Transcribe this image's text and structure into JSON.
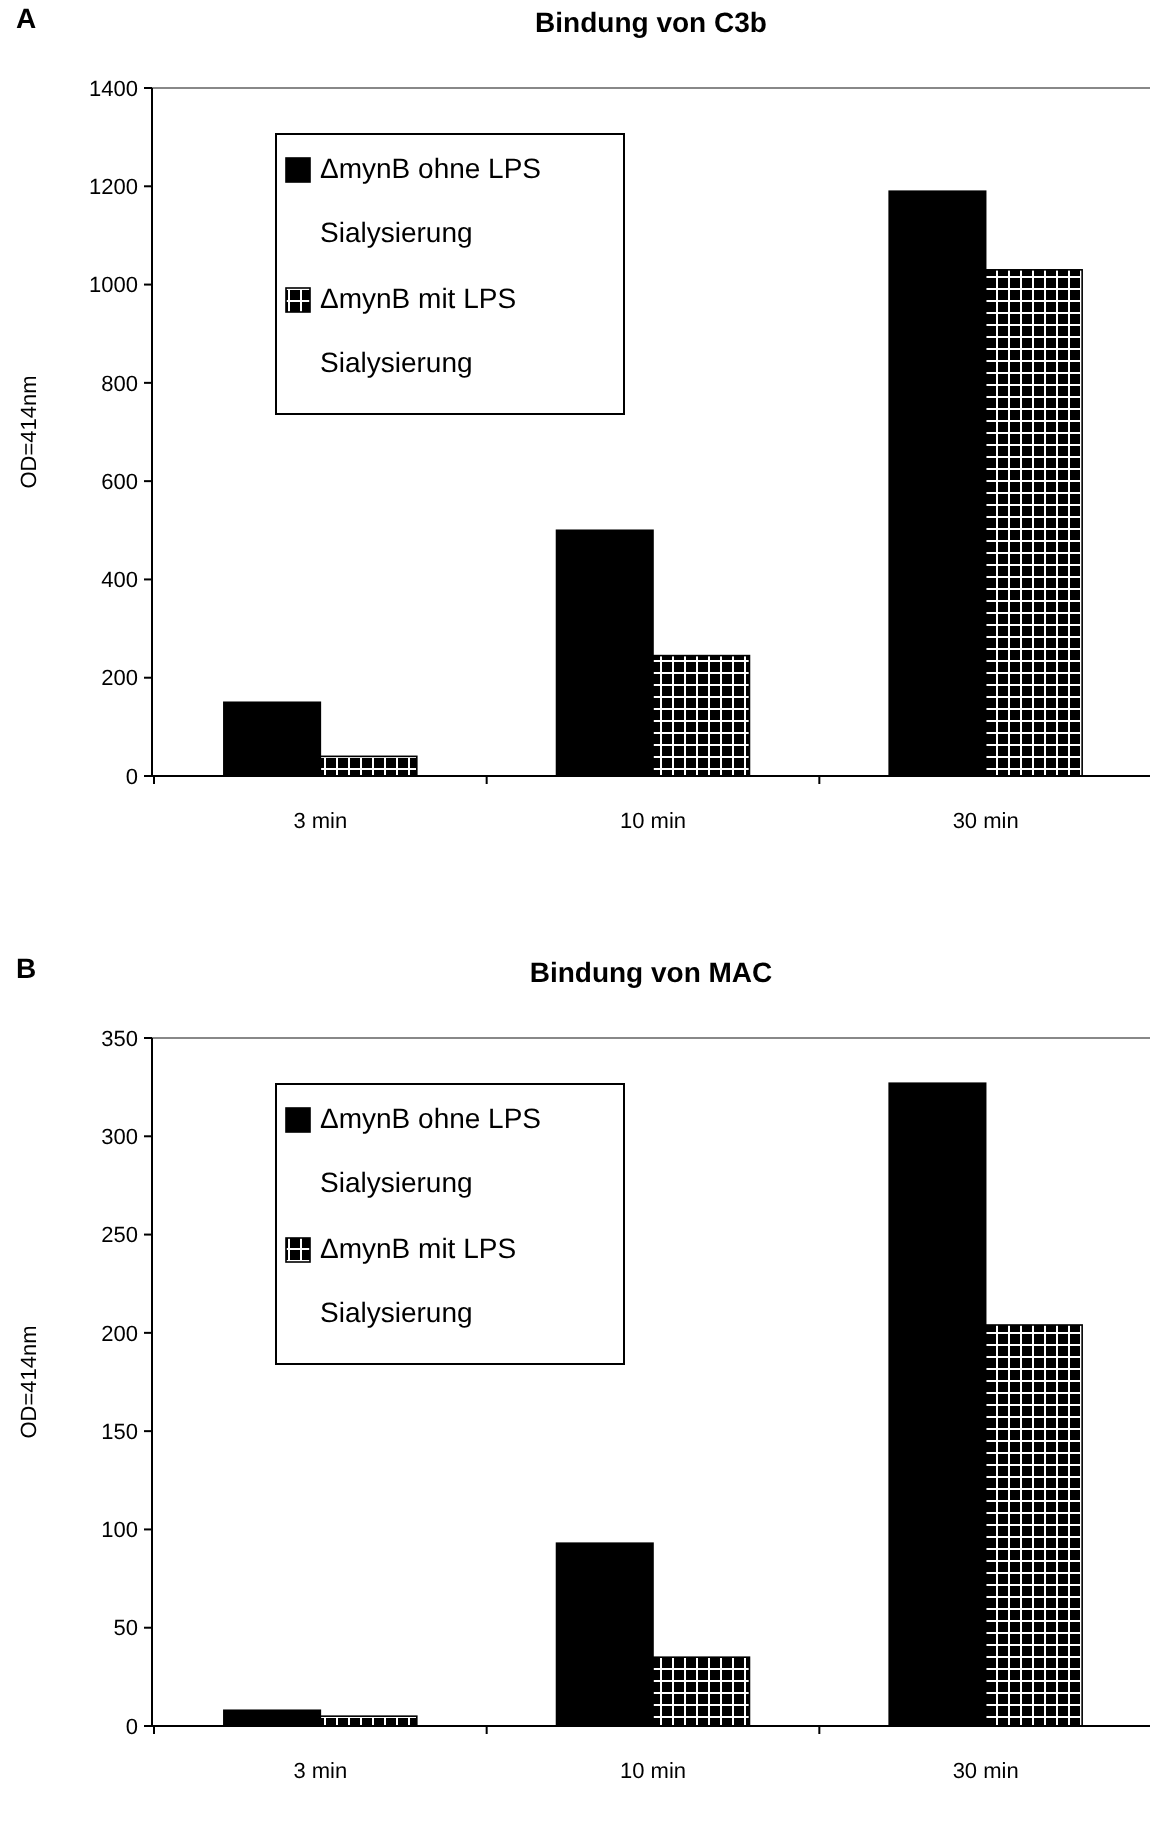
{
  "chart_data": [
    {
      "type": "bar",
      "title": "Bindung von C3b",
      "ylabel": "OD=414nm",
      "annotations": [
        "A"
      ],
      "categories": [
        "3 min",
        "10 min",
        "30 min"
      ],
      "series": [
        {
          "name": "ΔmynB ohne LPS Sialysierung",
          "color": "#000000",
          "values": [
            150,
            500,
            1190
          ]
        },
        {
          "name": "ΔmynB mit LPS Sialysierung",
          "color": "#000000",
          "values": [
            40,
            245,
            1030
          ]
        }
      ],
      "ylim": [
        0,
        1400
      ],
      "yticks": [
        0,
        200,
        400,
        600,
        800,
        1000,
        1200,
        1400
      ],
      "legend": "top left",
      "grid": false
    },
    {
      "type": "bar",
      "title": "Bindung von MAC",
      "ylabel": "OD=414nm",
      "annotations": [
        "B"
      ],
      "categories": [
        "3 min",
        "10 min",
        "30 min"
      ],
      "series": [
        {
          "name": "ΔmynB ohne LPS Sialysierung",
          "color": "#000000",
          "values": [
            8,
            93,
            327
          ]
        },
        {
          "name": "ΔmynB mit LPS Sialysierung",
          "color": "#000000",
          "values": [
            5,
            35,
            204
          ]
        }
      ],
      "ylim": [
        0,
        350
      ],
      "yticks": [
        0,
        50,
        100,
        150,
        200,
        250,
        300,
        350
      ],
      "legend": "top left",
      "grid": false
    }
  ]
}
